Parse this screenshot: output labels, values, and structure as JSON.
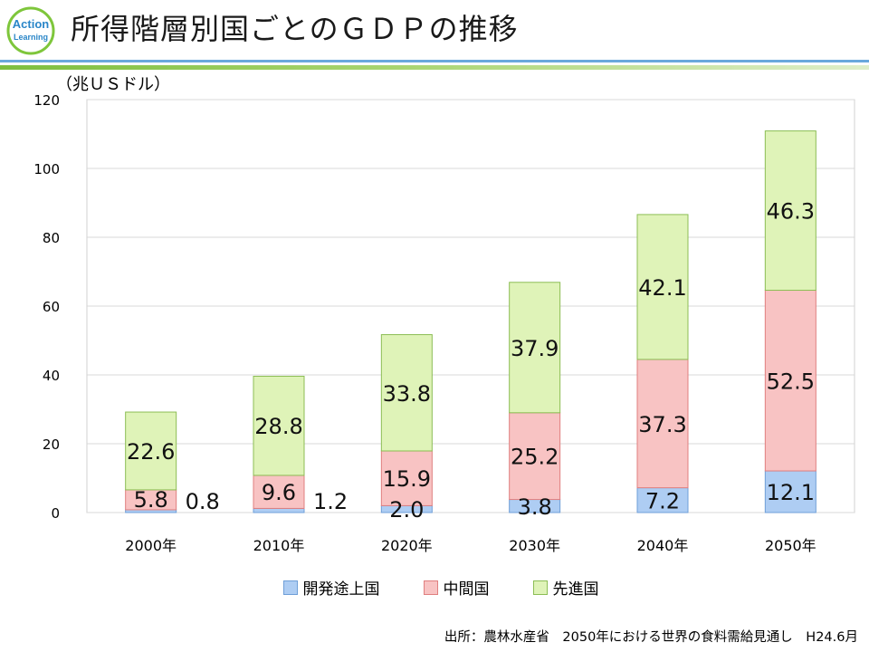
{
  "header": {
    "title": "所得階層別国ごとのＧＤＰの推移",
    "logo_text_top": "Action",
    "logo_text_bottom": "Learning"
  },
  "chart_data": {
    "type": "bar",
    "stacked": true,
    "unit_label": "（兆ＵＳドル）",
    "categories": [
      "2000年",
      "2010年",
      "2020年",
      "2030年",
      "2040年",
      "2050年"
    ],
    "ylim": [
      0,
      120
    ],
    "yticks": [
      0,
      20,
      40,
      60,
      80,
      100,
      120
    ],
    "grid": true,
    "legend_position": "bottom",
    "series": [
      {
        "name": "開発途上国",
        "values": [
          0.8,
          1.2,
          2.0,
          3.8,
          7.2,
          12.1
        ],
        "labels": [
          "0.8",
          "1.2",
          "2.0",
          "3.8",
          "7.2",
          "12.1"
        ],
        "color": "#aecdf3",
        "stroke": "#6f9fd8"
      },
      {
        "name": "中間国",
        "values": [
          5.8,
          9.6,
          15.9,
          25.2,
          37.3,
          52.5
        ],
        "labels": [
          "5.8",
          "9.6",
          "15.9",
          "25.2",
          "37.3",
          "52.5"
        ],
        "color": "#f8c3c3",
        "stroke": "#e07f7f"
      },
      {
        "name": "先進国",
        "values": [
          22.6,
          28.8,
          33.8,
          37.9,
          42.1,
          46.3
        ],
        "labels": [
          "22.6",
          "28.8",
          "33.8",
          "37.9",
          "42.1",
          "46.3"
        ],
        "color": "#dff3b8",
        "stroke": "#8cbe55"
      }
    ]
  },
  "source": "出所：農林水産省　2050年における世界の食料需給見通し　H24.6月"
}
